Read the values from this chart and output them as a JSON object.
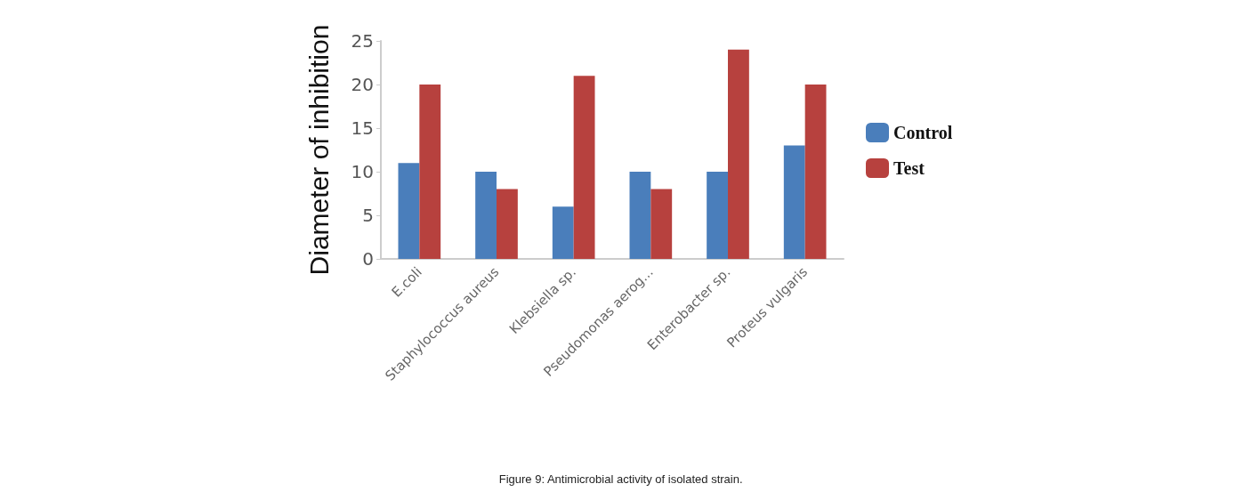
{
  "chart_data": {
    "type": "bar",
    "ylabel": "Diameter of inhibition",
    "categories": [
      "E.coli",
      "Staphylococcus aureus",
      "Klebsiella sp.",
      "Pseudomonas aerog...",
      "Enterobacter sp.",
      "Proteus vulgaris"
    ],
    "series": [
      {
        "name": "Control",
        "color": "#4a7ebb",
        "values": [
          11,
          10,
          6,
          10,
          10,
          13
        ]
      },
      {
        "name": "Test",
        "color": "#b7413e",
        "values": [
          20,
          8,
          21,
          8,
          24,
          20
        ]
      }
    ],
    "ylim": [
      0,
      25
    ],
    "yticks": [
      0,
      5,
      10,
      15,
      20,
      25
    ],
    "grid": false,
    "legend": "right",
    "annotations": [
      "Figure 9: Antimicrobial activity of isolated strain."
    ]
  }
}
